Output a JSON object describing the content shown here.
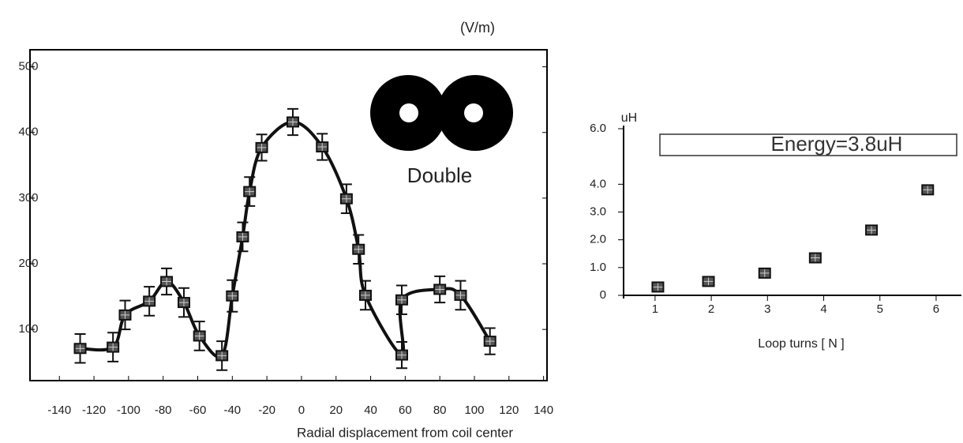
{
  "chart_data": [
    {
      "type": "scatter",
      "unit_label": "(V/m)",
      "annotation": "Double",
      "x_label": "Radial displacement from coil center",
      "xlim": [
        -157,
        142
      ],
      "xticks": [
        -140,
        -120,
        -100,
        -80,
        -60,
        -40,
        -20,
        0,
        20,
        40,
        60,
        80,
        100,
        120,
        140
      ],
      "ylim": [
        22,
        526
      ],
      "yticks": [
        100,
        200,
        300,
        400,
        500
      ],
      "line": "smooth",
      "series": [
        {
          "color": "#111111",
          "x": [
            -128,
            -109,
            -102,
            -88,
            -78,
            -68,
            -59,
            -46,
            -40,
            -34,
            -30,
            -23,
            -5,
            12,
            26,
            33,
            37,
            58,
            58,
            80,
            92,
            109
          ],
          "values": [
            71,
            73,
            122,
            143,
            173,
            141,
            90,
            60,
            151,
            241,
            310,
            377,
            416,
            378,
            299,
            222,
            152,
            61,
            145,
            161,
            152,
            82
          ],
          "errors": [
            22,
            22,
            22,
            22,
            20,
            22,
            22,
            22,
            24,
            22,
            22,
            20,
            20,
            20,
            22,
            22,
            22,
            20,
            22,
            20,
            22,
            20
          ]
        }
      ]
    },
    {
      "type": "scatter",
      "title": "Energy=3.8uH",
      "y_label": "uH",
      "x_label": "Loop turns [ N ]",
      "xlim": [
        0.44,
        6.45
      ],
      "xticks": [
        1,
        2,
        3,
        4,
        5,
        6
      ],
      "ylim": [
        0,
        6
      ],
      "yticks": [
        0,
        {
          "value": 1,
          "label": "1.0"
        },
        {
          "value": 2,
          "label": "2.0"
        },
        {
          "value": 3,
          "label": "3.0"
        },
        {
          "value": 4,
          "label": "4.0"
        },
        {
          "value": 6,
          "label": "6.0"
        }
      ],
      "series": [
        {
          "color": "#111111",
          "x": [
            1.05,
            1.95,
            2.95,
            3.85,
            4.85,
            5.85
          ],
          "values": [
            0.3,
            0.5,
            0.8,
            1.35,
            2.35,
            3.8
          ]
        }
      ]
    }
  ]
}
